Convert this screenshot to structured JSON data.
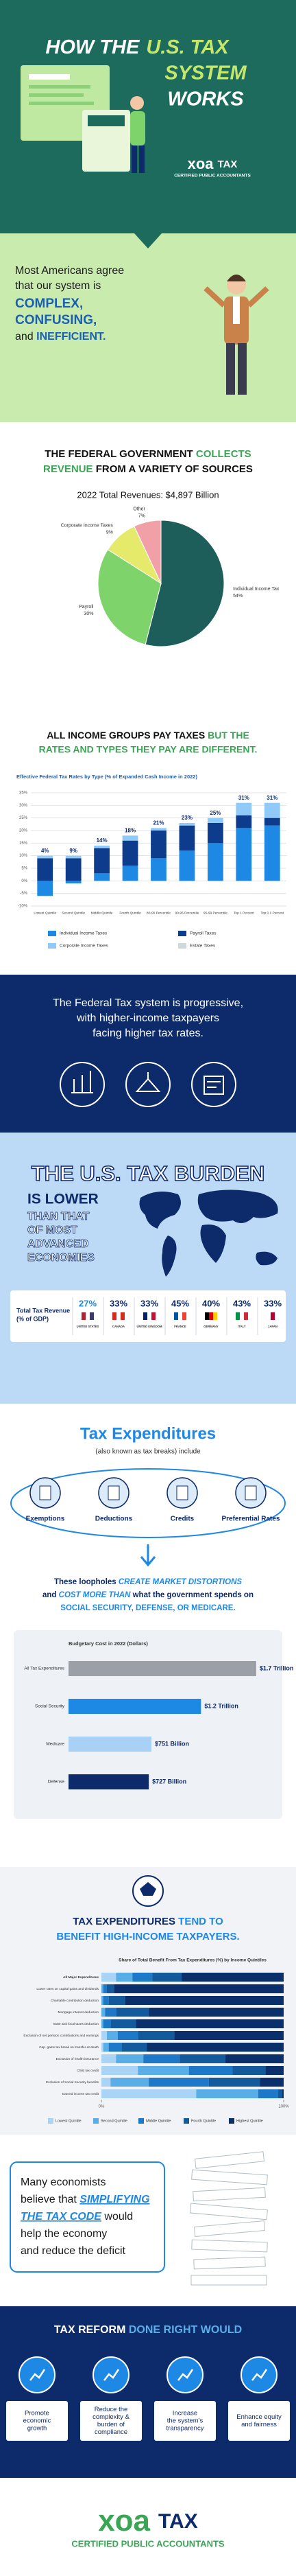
{
  "header": {
    "title": [
      "HOW THE",
      "U.S. TAX",
      "SYSTEM",
      "WORKS"
    ]
  },
  "logo": {
    "mark": "xoa",
    "word": "TAX",
    "tagline": "CERTIFIED PUBLIC ACCOUNTANTS"
  },
  "intro": {
    "line1": "Most Americans agree",
    "line2": "that our system is",
    "word1": "COMPLEX,",
    "word2": "CONFUSING,",
    "and": "and ",
    "word3": "INEFFICIENT."
  },
  "revenue": {
    "heading": [
      "THE FEDERAL GOVERNMENT ",
      "COLLECTS",
      "REVENUE",
      " FROM A VARIETY OF SOURCES"
    ]
  },
  "rates": {
    "heading": [
      "ALL INCOME GROUPS PAY TAXES ",
      "BUT THE",
      "RATES AND TYPES THEY PAY ARE DIFFERENT."
    ]
  },
  "progressive": {
    "lines": [
      "The Federal Tax system is progressive,",
      "with higher-income taxpayers",
      "facing higher tax rates."
    ]
  },
  "burden": {
    "title": "THE U.S. TAX BURDEN",
    "lower": "IS LOWER",
    "rest": [
      "THAN THAT",
      "OF MOST",
      "ADVANCED",
      "ECONOMIES"
    ],
    "box_label": [
      "Total Tax Revenue",
      "(% of GDP)"
    ],
    "countries": [
      {
        "value": "27%",
        "name": "UNITED STATES"
      },
      {
        "value": "33%",
        "name": "CANADA"
      },
      {
        "value": "33%",
        "name": "UNITED KINGDOM"
      },
      {
        "value": "45%",
        "name": "FRANCE"
      },
      {
        "value": "40%",
        "name": "GERMANY"
      },
      {
        "value": "43%",
        "name": "ITALY"
      },
      {
        "value": "33%",
        "name": "JAPAN"
      }
    ]
  },
  "expenditures": {
    "title": "Tax Expenditures",
    "subtitle": "(also known as tax breaks) include",
    "items": [
      "Exemptions",
      "Deductions",
      "Credits",
      "Preferential Rates"
    ],
    "note": [
      [
        "These loopholes ",
        "CREATE MARKET DISTORTIONS"
      ],
      [
        "and ",
        "COST MORE THAN",
        " what the government spends on"
      ],
      [
        "SOCIAL SECURITY, DEFENSE, OR MEDICARE."
      ]
    ]
  },
  "benefit": {
    "heading": [
      "TAX EXPENDITURES ",
      "TEND TO",
      "BENEFIT HIGH-INCOME TAXPAYERS."
    ]
  },
  "economists": {
    "lines": [
      [
        "Many economists"
      ],
      [
        "believe that ",
        "SIMPLIFYING"
      ],
      [
        "THE TAX CODE",
        " would"
      ],
      [
        "help the economy"
      ],
      [
        "and reduce the deficit"
      ]
    ]
  },
  "reform": {
    "title": [
      "TAX REFORM ",
      "DONE RIGHT WOULD"
    ],
    "items": [
      [
        "Promote",
        "economic",
        "growth"
      ],
      [
        "Reduce the",
        "complexity &",
        "burden of",
        "compliance"
      ],
      [
        "Increase",
        "the system's",
        "transparency"
      ],
      [
        "Enhance equity",
        "and fairness"
      ]
    ]
  },
  "chart_data": [
    {
      "type": "pie",
      "title": "2022 Total Revenues: $4,897 Billion",
      "categories": [
        "Individual Income Tax",
        "Payroll",
        "Corporate Income Taxes",
        "Other"
      ],
      "values": [
        54,
        30,
        9,
        7
      ],
      "value_labels": [
        "54%",
        "30%",
        "9%",
        "7%"
      ],
      "colors": [
        "#1d5e5a",
        "#7fd36b",
        "#e6ea6a",
        "#f2a0a8"
      ]
    },
    {
      "type": "stacked-bar",
      "title": "Effective Federal Tax Rates by Type (% of Expanded Cash Income in 2022)",
      "categories": [
        "Lowest Quintile",
        "Second Quintile",
        "Middle Quintile",
        "Fourth Quintile",
        "80-90 Percentile",
        "90-95 Percentile",
        "95-99 Percentile",
        "Top 1 Percent",
        "Top 0.1 Percent"
      ],
      "series": [
        {
          "name": "Individual Income Taxes",
          "color": "#1e88e5",
          "values": [
            -6,
            -1,
            3,
            6,
            9,
            12,
            15,
            21,
            22
          ]
        },
        {
          "name": "Payroll Taxes",
          "color": "#0d3c8c",
          "values": [
            9,
            9,
            10,
            10,
            11,
            10,
            8,
            5,
            3
          ]
        },
        {
          "name": "Corporate Income Taxes",
          "color": "#90caf9",
          "values": [
            1,
            1,
            1,
            2,
            1,
            1,
            2,
            5,
            6
          ]
        },
        {
          "name": "Estate Taxes",
          "color": "#cfd8dc",
          "values": [
            0,
            0,
            0,
            0,
            0,
            0,
            0,
            0,
            0
          ]
        }
      ],
      "totals": [
        4,
        9,
        14,
        18,
        21,
        23,
        25,
        31,
        31
      ],
      "total_labels": [
        "4%",
        "9%",
        "14%",
        "18%",
        "21%",
        "23%",
        "25%",
        "31%",
        "31%"
      ],
      "ylim": [
        -10,
        35
      ],
      "yticks": [
        {
          "value": -10,
          "label": "-10%"
        },
        {
          "value": -5,
          "label": "-5%"
        },
        {
          "value": 0,
          "label": "0%"
        },
        {
          "value": 5,
          "label": "5%"
        },
        {
          "value": 10,
          "label": "10%"
        },
        {
          "value": 15,
          "label": "15%"
        },
        {
          "value": 20,
          "label": "20%"
        },
        {
          "value": 25,
          "label": "25%"
        },
        {
          "value": 30,
          "label": "30%"
        },
        {
          "value": 35,
          "label": "35%"
        }
      ],
      "grid": true
    },
    {
      "type": "hbar",
      "title": "Budgetary Cost in 2022 (Dollars)",
      "categories": [
        "All Tax Expenditures",
        "Social Security",
        "Medicare",
        "Defense"
      ],
      "values": [
        1700,
        1200,
        751,
        727
      ],
      "value_labels": [
        "$1.7 Trillion",
        "$1.2 Trillion",
        "$751 Billion",
        "$727 Billion"
      ],
      "colors": [
        "#9aa0a6",
        "#1e88e5",
        "#a8d1f5",
        "#0d2a6b"
      ],
      "xlim": [
        0,
        1800
      ]
    },
    {
      "type": "stacked-hbar",
      "title": "Share of Total Benefit From Tax Expenditures (%) by Income Quintiles",
      "categories": [
        "All Major Expenditures",
        "Lower rates on capital gains and dividends",
        "Charitable contribution deduction",
        "Mortgage interest deduction",
        "State and local taxes deduction",
        "Exclusion of net pension contributions and earnings",
        "Cap. gains tax break on transfer at death",
        "Exclusion of health insurance",
        "Child tax credit",
        "Exclusion of Social Security benefits",
        "Earned income tax credit"
      ],
      "series": [
        {
          "name": "Lowest Quintile",
          "color": "#a9d4f5",
          "values": [
            8,
            0,
            0,
            0,
            0,
            3,
            1,
            8,
            20,
            5,
            52
          ]
        },
        {
          "name": "Second Quintile",
          "color": "#5aaee8",
          "values": [
            9,
            1,
            1,
            2,
            1,
            6,
            3,
            15,
            28,
            21,
            34
          ]
        },
        {
          "name": "Middle Quintile",
          "color": "#1e78c8",
          "values": [
            11,
            2,
            3,
            6,
            4,
            11,
            7,
            20,
            24,
            33,
            11
          ]
        },
        {
          "name": "Fourth Quintile",
          "color": "#135a9c",
          "values": [
            16,
            4,
            9,
            18,
            14,
            20,
            14,
            25,
            18,
            28,
            2
          ]
        },
        {
          "name": "Highest Quintile",
          "color": "#0b2f6b",
          "values": [
            56,
            93,
            87,
            74,
            81,
            60,
            75,
            32,
            10,
            13,
            1
          ]
        }
      ],
      "xlim": [
        0,
        100
      ],
      "xticks": [
        {
          "value": 0,
          "label": "0%"
        },
        {
          "value": 100,
          "label": "100%"
        }
      ]
    }
  ]
}
